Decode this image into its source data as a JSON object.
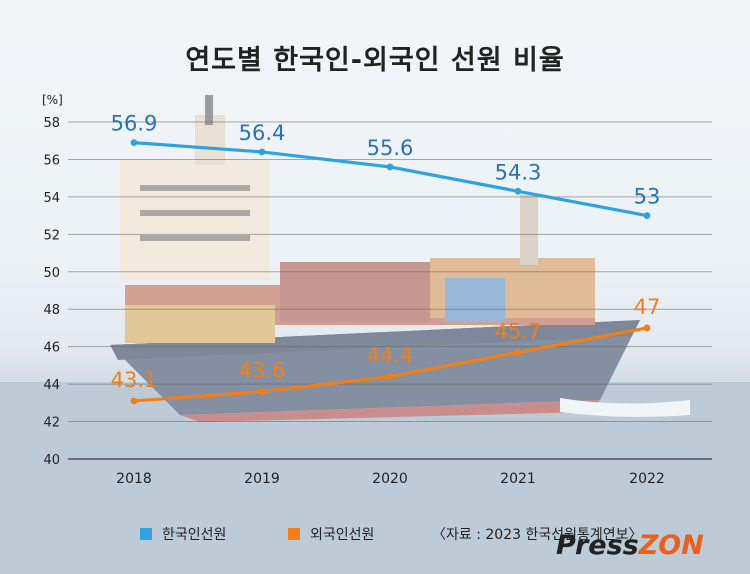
{
  "title": "연도별 한국인-외국인 선원 비율",
  "chart_data": {
    "type": "line",
    "ylabel": "[%]",
    "ylim": [
      40,
      58
    ],
    "yticks": [
      40,
      42,
      44,
      46,
      48,
      50,
      52,
      54,
      56,
      58
    ],
    "categories": [
      "2018",
      "2019",
      "2020",
      "2021",
      "2022"
    ],
    "series": [
      {
        "name": "한국인선원",
        "color": "#2fa3df",
        "label_color": "#2a73b8",
        "values": [
          56.9,
          56.4,
          55.6,
          54.3,
          53
        ],
        "labels": [
          "56.9",
          "56.4",
          "55.6",
          "54.3",
          "53"
        ]
      },
      {
        "name": "외국인선원",
        "color": "#f07f1b",
        "label_color": "#f07f1b",
        "values": [
          43.1,
          43.6,
          44.4,
          45.7,
          47
        ],
        "labels": [
          "43.1",
          "43.6",
          "44.4",
          "45.7",
          "47"
        ]
      }
    ],
    "grid": true,
    "legend_position": "bottom-left"
  },
  "source": "〈자료 : 2023 한국선원통계연보〉",
  "logo": {
    "part1": "Press",
    "part2": "ZON"
  }
}
